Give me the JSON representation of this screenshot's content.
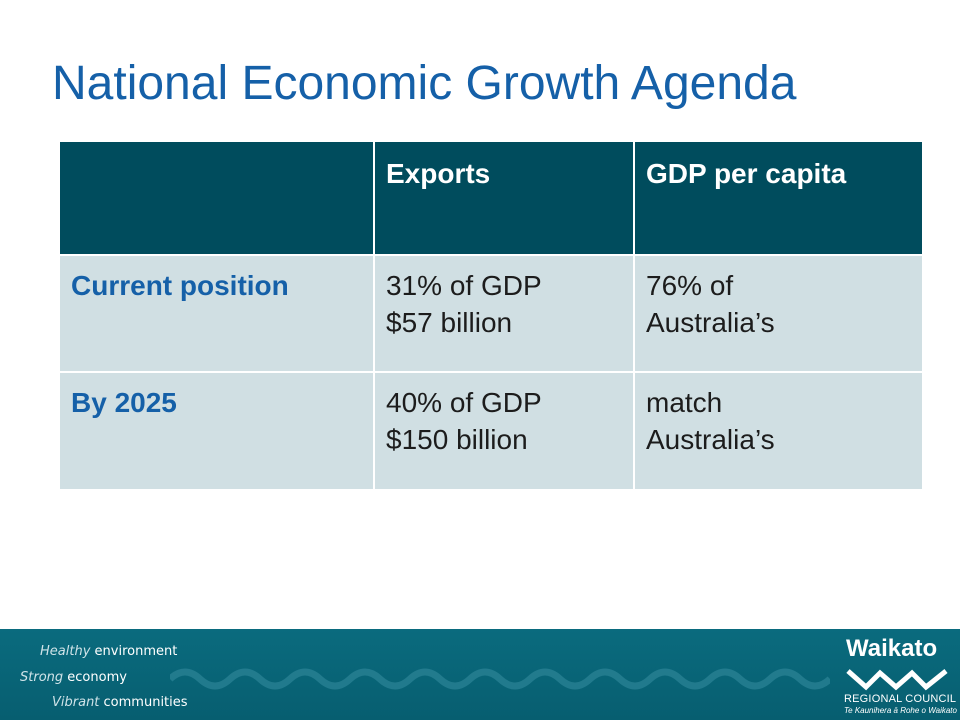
{
  "slide": {
    "title": "National Economic Growth Agenda"
  },
  "table": {
    "headers": [
      "",
      "Exports",
      "GDP per capita"
    ],
    "rows": [
      {
        "label": "Current position",
        "exports": [
          "31% of GDP",
          "$57 billion"
        ],
        "gdp_per_capita": [
          "76% of",
          "Australia’s"
        ]
      },
      {
        "label": "By 2025",
        "exports": [
          "40% of GDP",
          "$150 billion"
        ],
        "gdp_per_capita": [
          "match",
          "Australia’s"
        ]
      }
    ]
  },
  "footer": {
    "taglines": [
      {
        "emphasis": "Healthy",
        "rest": " environment"
      },
      {
        "emphasis": "Strong",
        "rest": " economy"
      },
      {
        "emphasis": "Vibrant",
        "rest": " communities"
      }
    ],
    "logo": {
      "name": "Waikato",
      "subtitle": "REGIONAL COUNCIL",
      "maori_name": "Te Kaunihera ā Rohe o Waikato",
      "icon": "waikato-wave-logo-icon"
    }
  },
  "colors": {
    "title": "#1560a8",
    "header_fill": "#004c5d",
    "body_fill": "#d0dfe3",
    "row_label": "#1560a8",
    "footer_fill": "#0a6b7e"
  }
}
